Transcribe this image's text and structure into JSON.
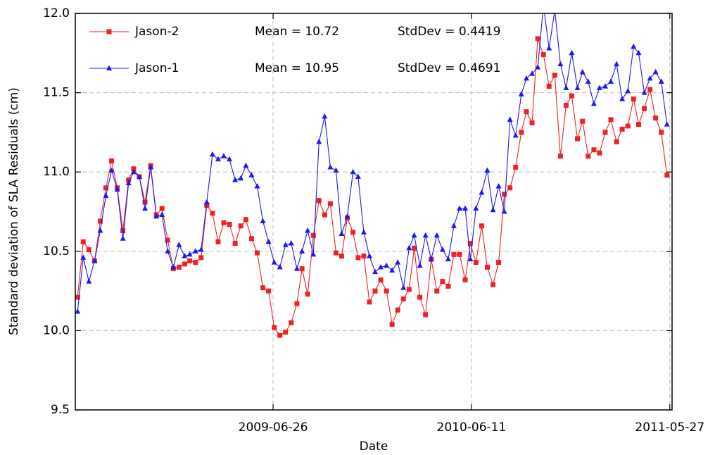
{
  "chart_data": {
    "type": "line",
    "xlabel": "Date",
    "ylabel": "Standard deviation of SLA Residuals (cm)",
    "xlim": [
      "2008-07-12",
      "2011-05-31"
    ],
    "xticks": [
      "2009-06-26",
      "2010-06-11",
      "2011-05-27"
    ],
    "ylim": [
      9.5,
      12.0
    ],
    "yticks": [
      9.5,
      {
        "value": 10.0,
        "label": "10.0"
      },
      10.5,
      {
        "value": 11.0,
        "label": "11.0"
      },
      11.5,
      {
        "value": 12.0,
        "label": "12.0"
      }
    ],
    "grid": true,
    "legend": "upper left",
    "x": [
      "2008-07-16",
      "2008-07-26",
      "2008-08-05",
      "2008-08-15",
      "2008-08-25",
      "2008-09-04",
      "2008-09-14",
      "2008-09-24",
      "2008-10-04",
      "2008-10-14",
      "2008-10-23",
      "2008-11-02",
      "2008-11-12",
      "2008-11-22",
      "2008-12-02",
      "2008-12-12",
      "2008-12-22",
      "2009-01-01",
      "2009-01-11",
      "2009-01-21",
      "2009-01-30",
      "2009-02-09",
      "2009-02-19",
      "2009-03-01",
      "2009-03-11",
      "2009-03-21",
      "2009-03-31",
      "2009-04-10",
      "2009-04-20",
      "2009-04-30",
      "2009-05-09",
      "2009-05-19",
      "2009-05-29",
      "2009-06-08",
      "2009-06-18",
      "2009-06-28",
      "2009-07-08",
      "2009-07-18",
      "2009-07-28",
      "2009-08-07",
      "2009-08-16",
      "2009-08-26",
      "2009-09-05",
      "2009-09-15",
      "2009-09-25",
      "2009-10-05",
      "2009-10-15",
      "2009-10-25",
      "2009-11-04",
      "2009-11-14",
      "2009-11-23",
      "2009-12-03",
      "2009-12-13",
      "2009-12-23",
      "2010-01-02",
      "2010-01-12",
      "2010-01-22",
      "2010-02-01",
      "2010-02-11",
      "2010-02-21",
      "2010-03-02",
      "2010-03-12",
      "2010-03-22",
      "2010-04-01",
      "2010-04-11",
      "2010-04-21",
      "2010-05-01",
      "2010-05-11",
      "2010-05-21",
      "2010-05-31",
      "2010-06-09",
      "2010-06-19",
      "2010-06-29",
      "2010-07-09",
      "2010-07-19",
      "2010-07-29",
      "2010-08-08",
      "2010-08-18",
      "2010-08-28",
      "2010-09-07",
      "2010-09-16",
      "2010-09-26",
      "2010-10-06",
      "2010-10-16",
      "2010-10-26",
      "2010-11-05",
      "2010-11-15",
      "2010-11-25",
      "2010-12-05",
      "2010-12-15",
      "2010-12-24",
      "2011-01-03",
      "2011-01-13",
      "2011-01-23",
      "2011-02-02",
      "2011-02-12",
      "2011-02-22",
      "2011-03-04",
      "2011-03-14",
      "2011-03-24",
      "2011-04-02",
      "2011-04-12",
      "2011-04-22",
      "2011-05-02",
      "2011-05-12",
      "2011-05-22"
    ],
    "series": [
      {
        "name": "Jason-2",
        "color": "#ee2222",
        "marker": "square",
        "stats": [
          "Mean = 10.72",
          "StdDev = 0.4419"
        ],
        "values": [
          10.21,
          10.56,
          10.51,
          10.44,
          10.69,
          10.9,
          11.07,
          10.9,
          10.63,
          10.95,
          11.02,
          10.97,
          10.81,
          11.04,
          10.73,
          10.77,
          10.57,
          10.39,
          10.4,
          10.42,
          10.44,
          10.43,
          10.46,
          10.79,
          10.74,
          10.56,
          10.68,
          10.67,
          10.55,
          10.66,
          10.7,
          10.58,
          10.49,
          10.27,
          10.25,
          10.02,
          9.97,
          9.99,
          10.05,
          10.17,
          10.39,
          10.23,
          10.6,
          10.82,
          10.73,
          10.8,
          10.49,
          10.47,
          10.71,
          10.62,
          10.46,
          10.47,
          10.18,
          10.25,
          10.32,
          10.25,
          10.04,
          10.13,
          10.2,
          10.26,
          10.52,
          10.21,
          10.1,
          10.45,
          10.25,
          10.31,
          10.28,
          10.48,
          10.48,
          10.32,
          10.55,
          10.43,
          10.66,
          10.4,
          10.29,
          10.43,
          10.86,
          10.9,
          11.03,
          11.25,
          11.38,
          11.31,
          11.84,
          11.74,
          11.54,
          11.61,
          11.1,
          11.42,
          11.48,
          11.21,
          11.32,
          11.1,
          11.14,
          11.12,
          11.25,
          11.33,
          11.19,
          11.27,
          11.29,
          11.46,
          11.3,
          11.4,
          11.52,
          11.34,
          11.25,
          10.98
        ]
      },
      {
        "name": "Jason-1",
        "color": "#1a1aee",
        "marker": "triangle",
        "stats": [
          "Mean = 10.95",
          "StdDev = 0.4691"
        ],
        "values": [
          10.12,
          10.46,
          10.31,
          10.44,
          10.63,
          10.85,
          11.01,
          10.89,
          10.58,
          10.93,
          11.0,
          10.97,
          10.77,
          11.03,
          10.72,
          10.73,
          10.5,
          10.4,
          10.54,
          10.47,
          10.48,
          10.5,
          10.51,
          10.81,
          11.11,
          11.08,
          11.1,
          11.08,
          10.95,
          10.96,
          11.04,
          10.98,
          10.91,
          10.69,
          10.56,
          10.43,
          10.4,
          10.54,
          10.55,
          10.39,
          10.5,
          10.63,
          10.48,
          11.19,
          11.35,
          11.03,
          11.01,
          10.61,
          10.72,
          11.0,
          10.97,
          10.62,
          10.47,
          10.37,
          10.4,
          10.41,
          10.38,
          10.43,
          10.27,
          10.52,
          10.6,
          10.41,
          10.6,
          10.45,
          10.6,
          10.51,
          10.45,
          10.66,
          10.77,
          10.77,
          10.45,
          10.77,
          10.87,
          11.01,
          10.76,
          10.91,
          10.75,
          11.33,
          11.23,
          11.49,
          11.59,
          11.62,
          11.66,
          12.05,
          11.78,
          12.02,
          11.68,
          11.53,
          11.75,
          11.53,
          11.63,
          11.57,
          11.43,
          11.53,
          11.54,
          11.57,
          11.68,
          11.46,
          11.51,
          11.79,
          11.75,
          11.5,
          11.59,
          11.63,
          11.57,
          11.3
        ]
      }
    ]
  }
}
